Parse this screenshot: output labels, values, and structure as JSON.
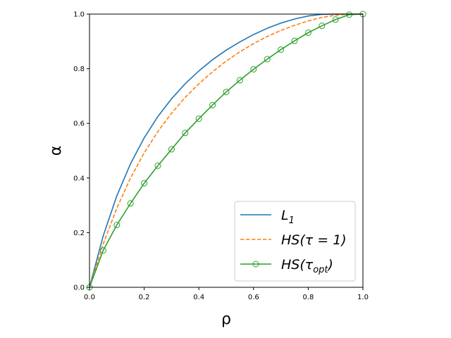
{
  "chart_data": {
    "type": "line",
    "title": "",
    "xlabel": "ρ",
    "ylabel": "α",
    "xlim": [
      0,
      1
    ],
    "ylim": [
      0,
      1
    ],
    "x_ticks": [
      "0.0",
      "0.2",
      "0.4",
      "0.6",
      "0.8",
      "1.0"
    ],
    "y_ticks": [
      "0.0",
      "0.2",
      "0.4",
      "0.6",
      "0.8",
      "1.0"
    ],
    "grid": false,
    "legend_position": "bottom-right",
    "series": [
      {
        "name_main": "L",
        "name_sub": "1",
        "color": "#1f77b4",
        "style": "solid",
        "marker": "none",
        "x": [
          0,
          0.05,
          0.1,
          0.15,
          0.2,
          0.25,
          0.3,
          0.35,
          0.4,
          0.45,
          0.5,
          0.55,
          0.6,
          0.65,
          0.7,
          0.75,
          0.8,
          0.85,
          0.9,
          0.95,
          1.0
        ],
        "y": [
          0,
          0.188,
          0.335,
          0.452,
          0.547,
          0.625,
          0.69,
          0.745,
          0.792,
          0.833,
          0.868,
          0.898,
          0.925,
          0.948,
          0.967,
          0.982,
          0.993,
          0.999,
          1.0,
          1.0,
          1.0
        ]
      },
      {
        "name_main": "HS(τ = 1)",
        "name_sub": "",
        "color": "#ff7f0e",
        "style": "dashed",
        "marker": "none",
        "x": [
          0,
          0.05,
          0.1,
          0.15,
          0.2,
          0.25,
          0.3,
          0.35,
          0.4,
          0.45,
          0.5,
          0.55,
          0.6,
          0.65,
          0.7,
          0.75,
          0.8,
          0.85,
          0.9,
          0.95,
          1.0
        ],
        "y": [
          0,
          0.158,
          0.29,
          0.4,
          0.492,
          0.57,
          0.637,
          0.695,
          0.745,
          0.789,
          0.828,
          0.862,
          0.892,
          0.918,
          0.94,
          0.959,
          0.975,
          0.988,
          0.996,
          1.0,
          1.0
        ]
      },
      {
        "name_main": "HS(τ",
        "name_sub": "opt",
        "name_end": ")",
        "color": "#2ca02c",
        "style": "solid",
        "marker": "circle",
        "x": [
          0,
          0.05,
          0.1,
          0.15,
          0.2,
          0.25,
          0.3,
          0.35,
          0.4,
          0.45,
          0.5,
          0.55,
          0.6,
          0.65,
          0.7,
          0.75,
          0.8,
          0.85,
          0.9,
          0.95,
          1.0
        ],
        "y": [
          0,
          0.135,
          0.228,
          0.307,
          0.381,
          0.445,
          0.505,
          0.565,
          0.617,
          0.667,
          0.715,
          0.758,
          0.798,
          0.835,
          0.87,
          0.902,
          0.932,
          0.957,
          0.98,
          0.998,
          1.0
        ]
      }
    ]
  }
}
